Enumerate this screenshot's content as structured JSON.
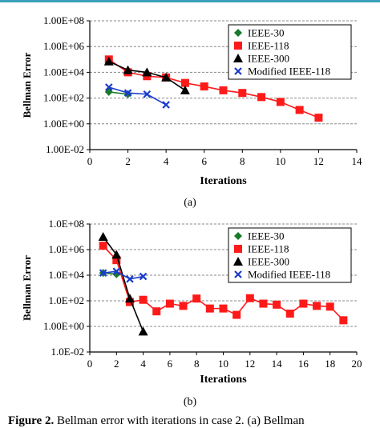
{
  "figure_caption": {
    "label": "Figure 2.",
    "text": "Bellman error with iterations in case 2. (a) Bellman"
  },
  "chart_data": [
    {
      "type": "line",
      "panel_label": "(a)",
      "xlabel": "Iterations",
      "ylabel": "Bellman Error",
      "xlim": [
        0,
        14
      ],
      "ylim_log10": [
        -2,
        8
      ],
      "y_scale": "log",
      "x_ticks": [
        0,
        2,
        4,
        6,
        8,
        10,
        12,
        14
      ],
      "x_tick_labels": [
        "0",
        "2",
        "4",
        "6",
        "8",
        "10",
        "12",
        "14"
      ],
      "y_ticks_log10": [
        8,
        6,
        4,
        2,
        0,
        -2
      ],
      "y_tick_labels": [
        "1.00E+08",
        "1.00E+06",
        "1.00E+04",
        "1.00E+02",
        "1.00E+00",
        "1.00E-02"
      ],
      "grid": "horizontal dashed",
      "legend_position": "top-right",
      "series": [
        {
          "name": "IEEE-30",
          "marker": "diamond",
          "color": "#1a7a2a",
          "x": [
            1,
            2
          ],
          "y": [
            300,
            200
          ]
        },
        {
          "name": "IEEE-118",
          "marker": "square",
          "color": "#ff1a1a",
          "x": [
            1,
            2,
            3,
            4,
            5,
            6,
            7,
            8,
            9,
            10,
            11,
            12
          ],
          "y": [
            100000,
            10000,
            5000,
            4000,
            1500,
            800,
            400,
            250,
            120,
            50,
            12,
            3
          ]
        },
        {
          "name": "IEEE-300",
          "marker": "triangle",
          "color": "#000000",
          "x": [
            1,
            2,
            3,
            4,
            5
          ],
          "y": [
            70000,
            15000,
            10000,
            4000,
            400
          ]
        },
        {
          "name": "Modified IEEE-118",
          "marker": "x",
          "color": "#1a3ccc",
          "x": [
            1,
            2,
            3,
            4
          ],
          "y": [
            700,
            250,
            200,
            30
          ]
        }
      ]
    },
    {
      "type": "line",
      "panel_label": "(b)",
      "xlabel": "Iterations",
      "ylabel": "Bellman Error",
      "xlim": [
        0,
        20
      ],
      "ylim_log10": [
        -2,
        8
      ],
      "y_scale": "log",
      "x_ticks": [
        0,
        2,
        4,
        6,
        8,
        10,
        12,
        14,
        16,
        18,
        20
      ],
      "x_tick_labels": [
        "0",
        "2",
        "4",
        "6",
        "8",
        "10",
        "12",
        "14",
        "16",
        "18",
        "20"
      ],
      "y_ticks_log10": [
        8,
        6,
        4,
        2,
        0,
        -2
      ],
      "y_tick_labels": [
        "1.0E+08",
        "1.0E+06",
        "1.0E+04",
        "1.0E+02",
        "1.00E+00",
        "1.0E-02"
      ],
      "grid": "horizontal dashed",
      "legend_position": "top-right",
      "series": [
        {
          "name": "IEEE-30",
          "marker": "diamond",
          "color": "#1a7a2a",
          "x": [
            1,
            2
          ],
          "y": [
            15000,
            12000
          ]
        },
        {
          "name": "IEEE-118",
          "marker": "square",
          "color": "#ff1a1a",
          "x": [
            1,
            2,
            3,
            4,
            5,
            6,
            7,
            8,
            9,
            10,
            11,
            12,
            13,
            14,
            15,
            16,
            17,
            18,
            19
          ],
          "y": [
            2000000,
            150000,
            80,
            120,
            15,
            60,
            40,
            150,
            25,
            25,
            8,
            160,
            60,
            50,
            10,
            60,
            40,
            35,
            3
          ]
        },
        {
          "name": "IEEE-300",
          "marker": "triangle",
          "color": "#000000",
          "x": [
            1,
            2,
            3,
            4
          ],
          "y": [
            10000000,
            400000,
            150,
            0.4
          ]
        },
        {
          "name": "Modified IEEE-118",
          "marker": "x",
          "color": "#1a3ccc",
          "x": [
            1,
            2,
            3,
            4
          ],
          "y": [
            15000,
            20000,
            5000,
            8000
          ]
        }
      ]
    }
  ]
}
